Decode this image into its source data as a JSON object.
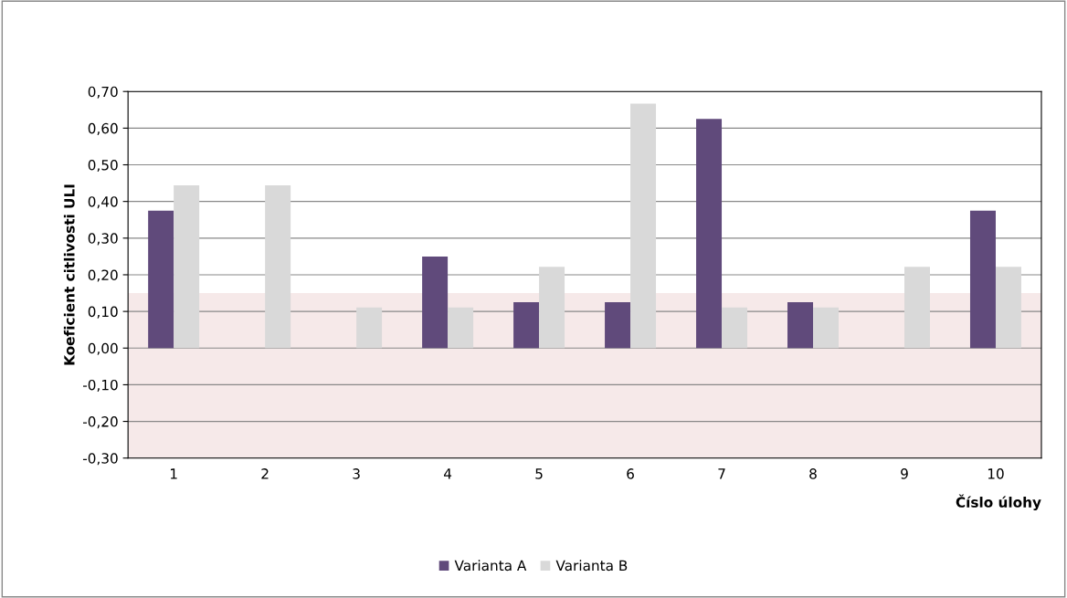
{
  "chart_data": {
    "type": "bar",
    "xlabel": "Číslo úlohy",
    "ylabel": "Koeficient citlivosti ULI",
    "categories": [
      "1",
      "2",
      "3",
      "4",
      "5",
      "6",
      "7",
      "8",
      "9",
      "10"
    ],
    "series": [
      {
        "name": "Varianta A",
        "color": "#604a7b",
        "values": [
          0.375,
          0.0,
          0.0,
          0.25,
          0.125,
          0.125,
          0.625,
          0.125,
          0.0,
          0.375
        ]
      },
      {
        "name": "Varianta B",
        "color": "#d9d9d9",
        "values": [
          0.444,
          0.444,
          0.111,
          0.111,
          0.222,
          0.667,
          0.111,
          0.111,
          0.222,
          0.222
        ]
      }
    ],
    "ylim": [
      -0.3,
      0.7
    ],
    "yticks": [
      {
        "value": -0.3,
        "label": "-0,30"
      },
      {
        "value": -0.2,
        "label": "-0,20"
      },
      {
        "value": -0.1,
        "label": "-0,10"
      },
      {
        "value": 0,
        "label": "0,00"
      },
      {
        "value": 0.1,
        "label": "0,10"
      },
      {
        "value": 0.2,
        "label": "0,20"
      },
      {
        "value": 0.3,
        "label": "0,30"
      },
      {
        "value": 0.4,
        "label": "0,40"
      },
      {
        "value": 0.5,
        "label": "0,50"
      },
      {
        "value": 0.6,
        "label": "0,60"
      },
      {
        "value": 0.7,
        "label": "0,70"
      }
    ],
    "bands": [
      {
        "axis": "y",
        "from": -0.3,
        "to": 0.15,
        "color": "#f6e9e9"
      }
    ],
    "grid": "y",
    "legend": "bottom"
  }
}
